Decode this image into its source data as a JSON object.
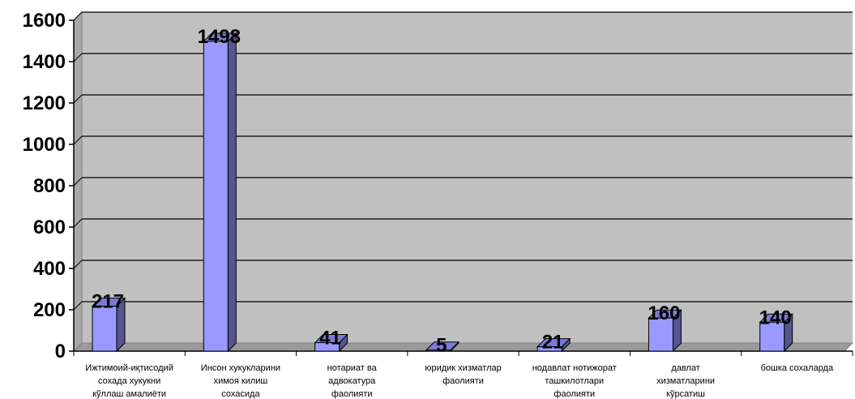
{
  "chart_data": {
    "type": "bar",
    "title": "",
    "xlabel": "",
    "ylabel": "",
    "ylim": [
      0,
      1600
    ],
    "yticks": [
      0,
      200,
      400,
      600,
      800,
      1000,
      1200,
      1400,
      1600
    ],
    "grid": true,
    "legend": "none",
    "categories": [
      [
        "Ижтимоий-иқтисодий",
        "сохада хукукни",
        "кўллаш амалиёти"
      ],
      [
        "Инсон хукукларини",
        "химоя килиш",
        "сохасида"
      ],
      [
        "нотариат ва",
        "адвокатура",
        "фаолияти"
      ],
      [
        "юридик хизматлар",
        "фаолияти"
      ],
      [
        "нодавлат нотижорат",
        "ташкилотлари",
        "фаолияти"
      ],
      [
        "давлат",
        "хизматларини",
        "кўрсатиш"
      ],
      [
        "бошка сохаларда"
      ]
    ],
    "values": [
      217,
      1498,
      41,
      5,
      21,
      160,
      140
    ],
    "data_labels": [
      "217",
      "1498",
      "41",
      "5",
      "21",
      "160",
      "140"
    ],
    "colors": {
      "bar_front": "#9999ff",
      "bar_side": "#55558f",
      "bar_top": "#7b7bd6",
      "plot_bg": "#c0c0c0",
      "plot_wall": "#a8a8a8",
      "grid": "#000000"
    }
  }
}
